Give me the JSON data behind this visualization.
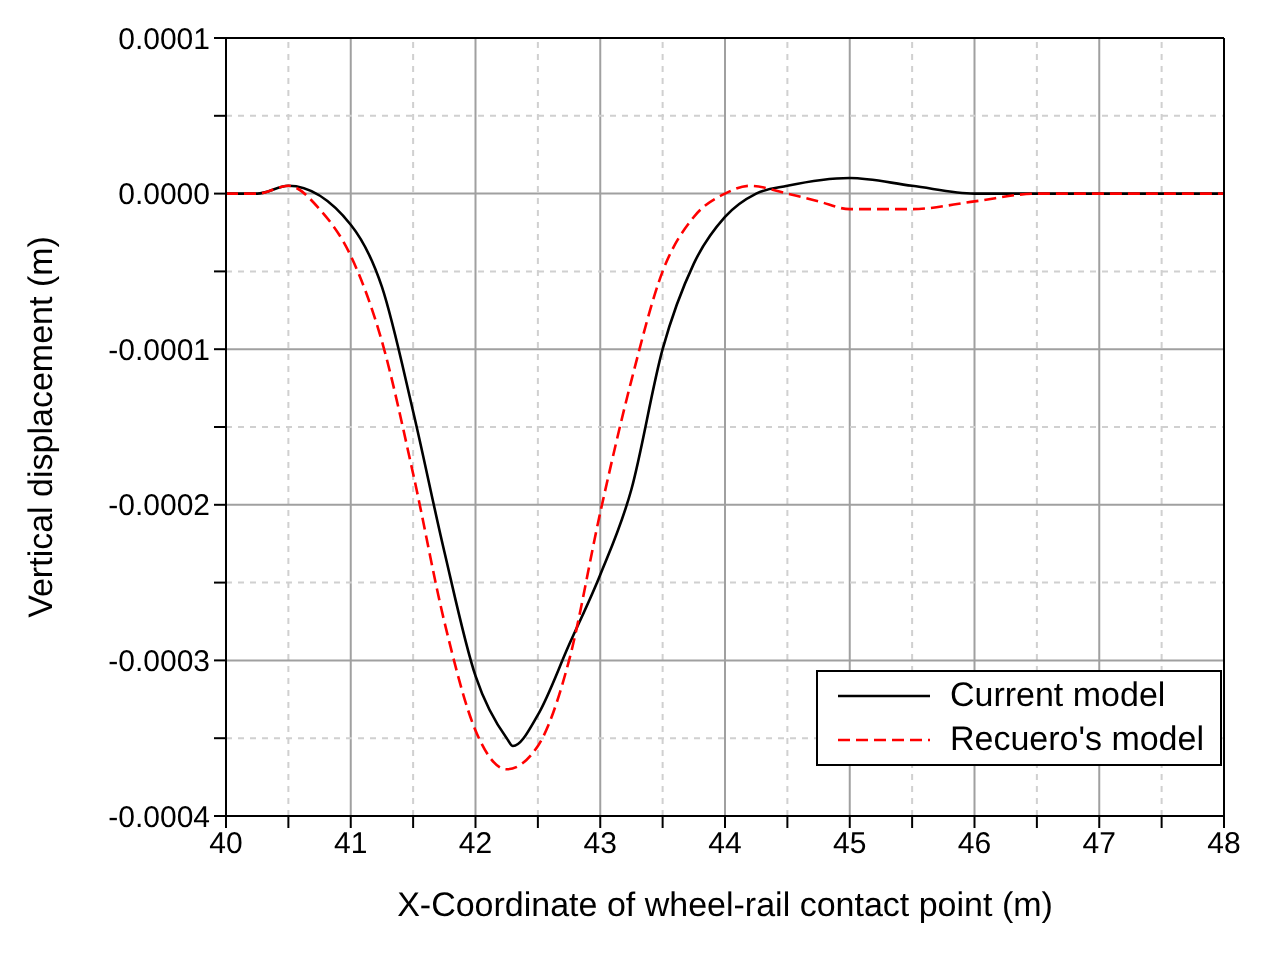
{
  "chart_data": {
    "type": "line",
    "xlabel": "X-Coordinate of wheel-rail contact point (m)",
    "ylabel": "Vertical displacement (m)",
    "xlim": [
      40,
      48
    ],
    "xticks": [
      40,
      {
        "value": 40.5,
        "label": null
      },
      41,
      {
        "value": 41.5,
        "label": null
      },
      42,
      {
        "value": 42.5,
        "label": null
      },
      43,
      {
        "value": 43.5,
        "label": null
      },
      44,
      {
        "value": 44.5,
        "label": null
      },
      45,
      {
        "value": 45.5,
        "label": null
      },
      46,
      {
        "value": 46.5,
        "label": null
      },
      47,
      {
        "value": 47.5,
        "label": null
      },
      48
    ],
    "ylim": [
      -0.0004,
      0.0001
    ],
    "yticks": [
      -0.0004,
      {
        "value": -0.00035,
        "label": null
      },
      -0.0003,
      {
        "value": -0.00025,
        "label": null
      },
      -0.0002,
      {
        "value": -0.00015,
        "label": null
      },
      -0.0001,
      {
        "value": -5e-05,
        "label": null
      },
      {
        "value": 0,
        "label": "0.0000"
      },
      {
        "value": 5e-05,
        "label": null
      },
      0.0001
    ],
    "grid": true,
    "legend": "bottom right",
    "series": [
      {
        "name": "Current model",
        "color": "#000000",
        "line_style": "solid",
        "x": [
          40,
          40.25,
          40.5,
          41,
          41.25,
          41.5,
          41.75,
          42,
          42.25,
          42.3,
          42.5,
          42.75,
          43,
          43.25,
          43.5,
          43.75,
          44,
          44.25,
          44.5,
          45,
          45.5,
          46,
          46.5,
          47,
          47.5,
          48
        ],
        "values": [
          0,
          0,
          5e-06,
          -2e-05,
          -6e-05,
          -0.00014,
          -0.00023,
          -0.00031,
          -0.00035,
          -0.000355,
          -0.000335,
          -0.00029,
          -0.000245,
          -0.00019,
          -0.0001,
          -4.5e-05,
          -1.5e-05,
          0,
          5e-06,
          1e-05,
          5e-06,
          0,
          0,
          0,
          0,
          0
        ]
      },
      {
        "name": "Recuero's model",
        "color": "#ff0000",
        "line_style": "dashed",
        "x": [
          40,
          40.25,
          40.5,
          40.75,
          41,
          41.25,
          41.5,
          41.75,
          42,
          42.25,
          42.5,
          42.75,
          43,
          43.25,
          43.5,
          43.75,
          44,
          44.2,
          44.5,
          44.75,
          45,
          45.5,
          46,
          46.5,
          47,
          47.5,
          48
        ],
        "values": [
          0,
          0,
          5e-06,
          -1e-05,
          -4e-05,
          -9.5e-05,
          -0.00018,
          -0.000275,
          -0.000345,
          -0.00037,
          -0.000355,
          -0.0003,
          -0.000205,
          -0.00012,
          -5e-05,
          -1.5e-05,
          0,
          5e-06,
          0,
          -5e-06,
          -1e-05,
          -1e-05,
          -5e-06,
          0,
          0,
          0,
          0
        ]
      }
    ]
  }
}
